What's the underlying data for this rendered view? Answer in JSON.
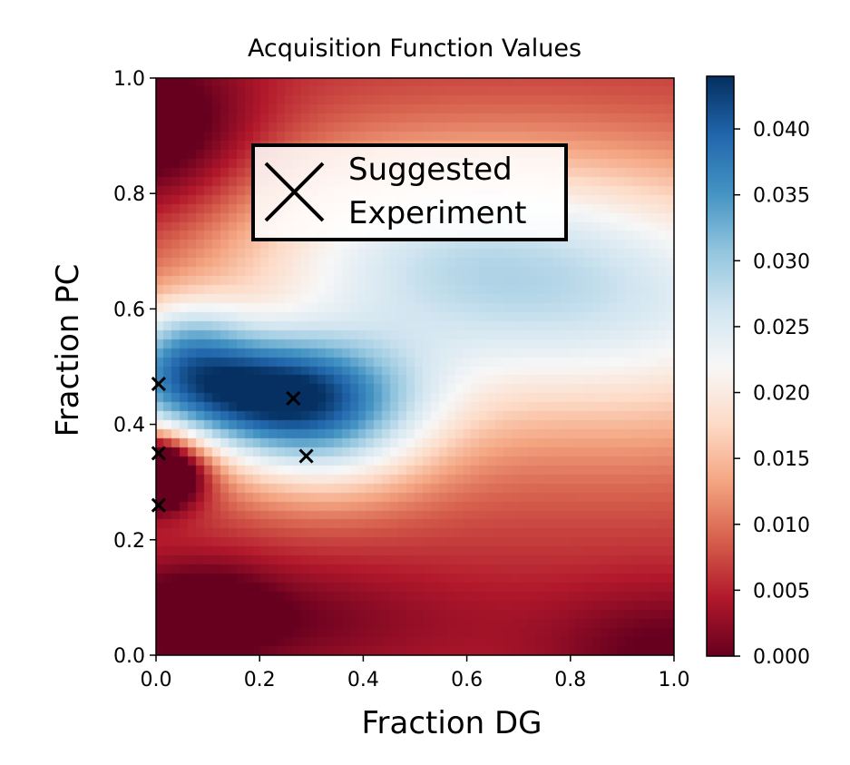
{
  "chart_data": {
    "type": "heatmap",
    "title": "Acquisition Function Values",
    "xlabel": "Fraction DG",
    "ylabel": "Fraction PC",
    "xlim": [
      0.0,
      1.0
    ],
    "ylim": [
      0.0,
      1.0
    ],
    "xticks": [
      "0.0",
      "0.2",
      "0.4",
      "0.6",
      "0.8",
      "1.0"
    ],
    "yticks": [
      "0.0",
      "0.2",
      "0.4",
      "0.6",
      "0.8",
      "1.0"
    ],
    "colormap": "RdBu",
    "colorbar": {
      "min": 0.0,
      "max": 0.044,
      "ticks": [
        "0.000",
        "0.005",
        "0.010",
        "0.015",
        "0.020",
        "0.025",
        "0.030",
        "0.035",
        "0.040"
      ]
    },
    "legend": {
      "label_line1": "Suggested",
      "label_line2": "Experiment",
      "placement": "upper-center"
    },
    "suggested_experiments": [
      {
        "x": 0.005,
        "y": 0.47
      },
      {
        "x": 0.005,
        "y": 0.35
      },
      {
        "x": 0.005,
        "y": 0.26
      },
      {
        "x": 0.265,
        "y": 0.445
      },
      {
        "x": 0.29,
        "y": 0.345
      }
    ],
    "grid": false
  }
}
